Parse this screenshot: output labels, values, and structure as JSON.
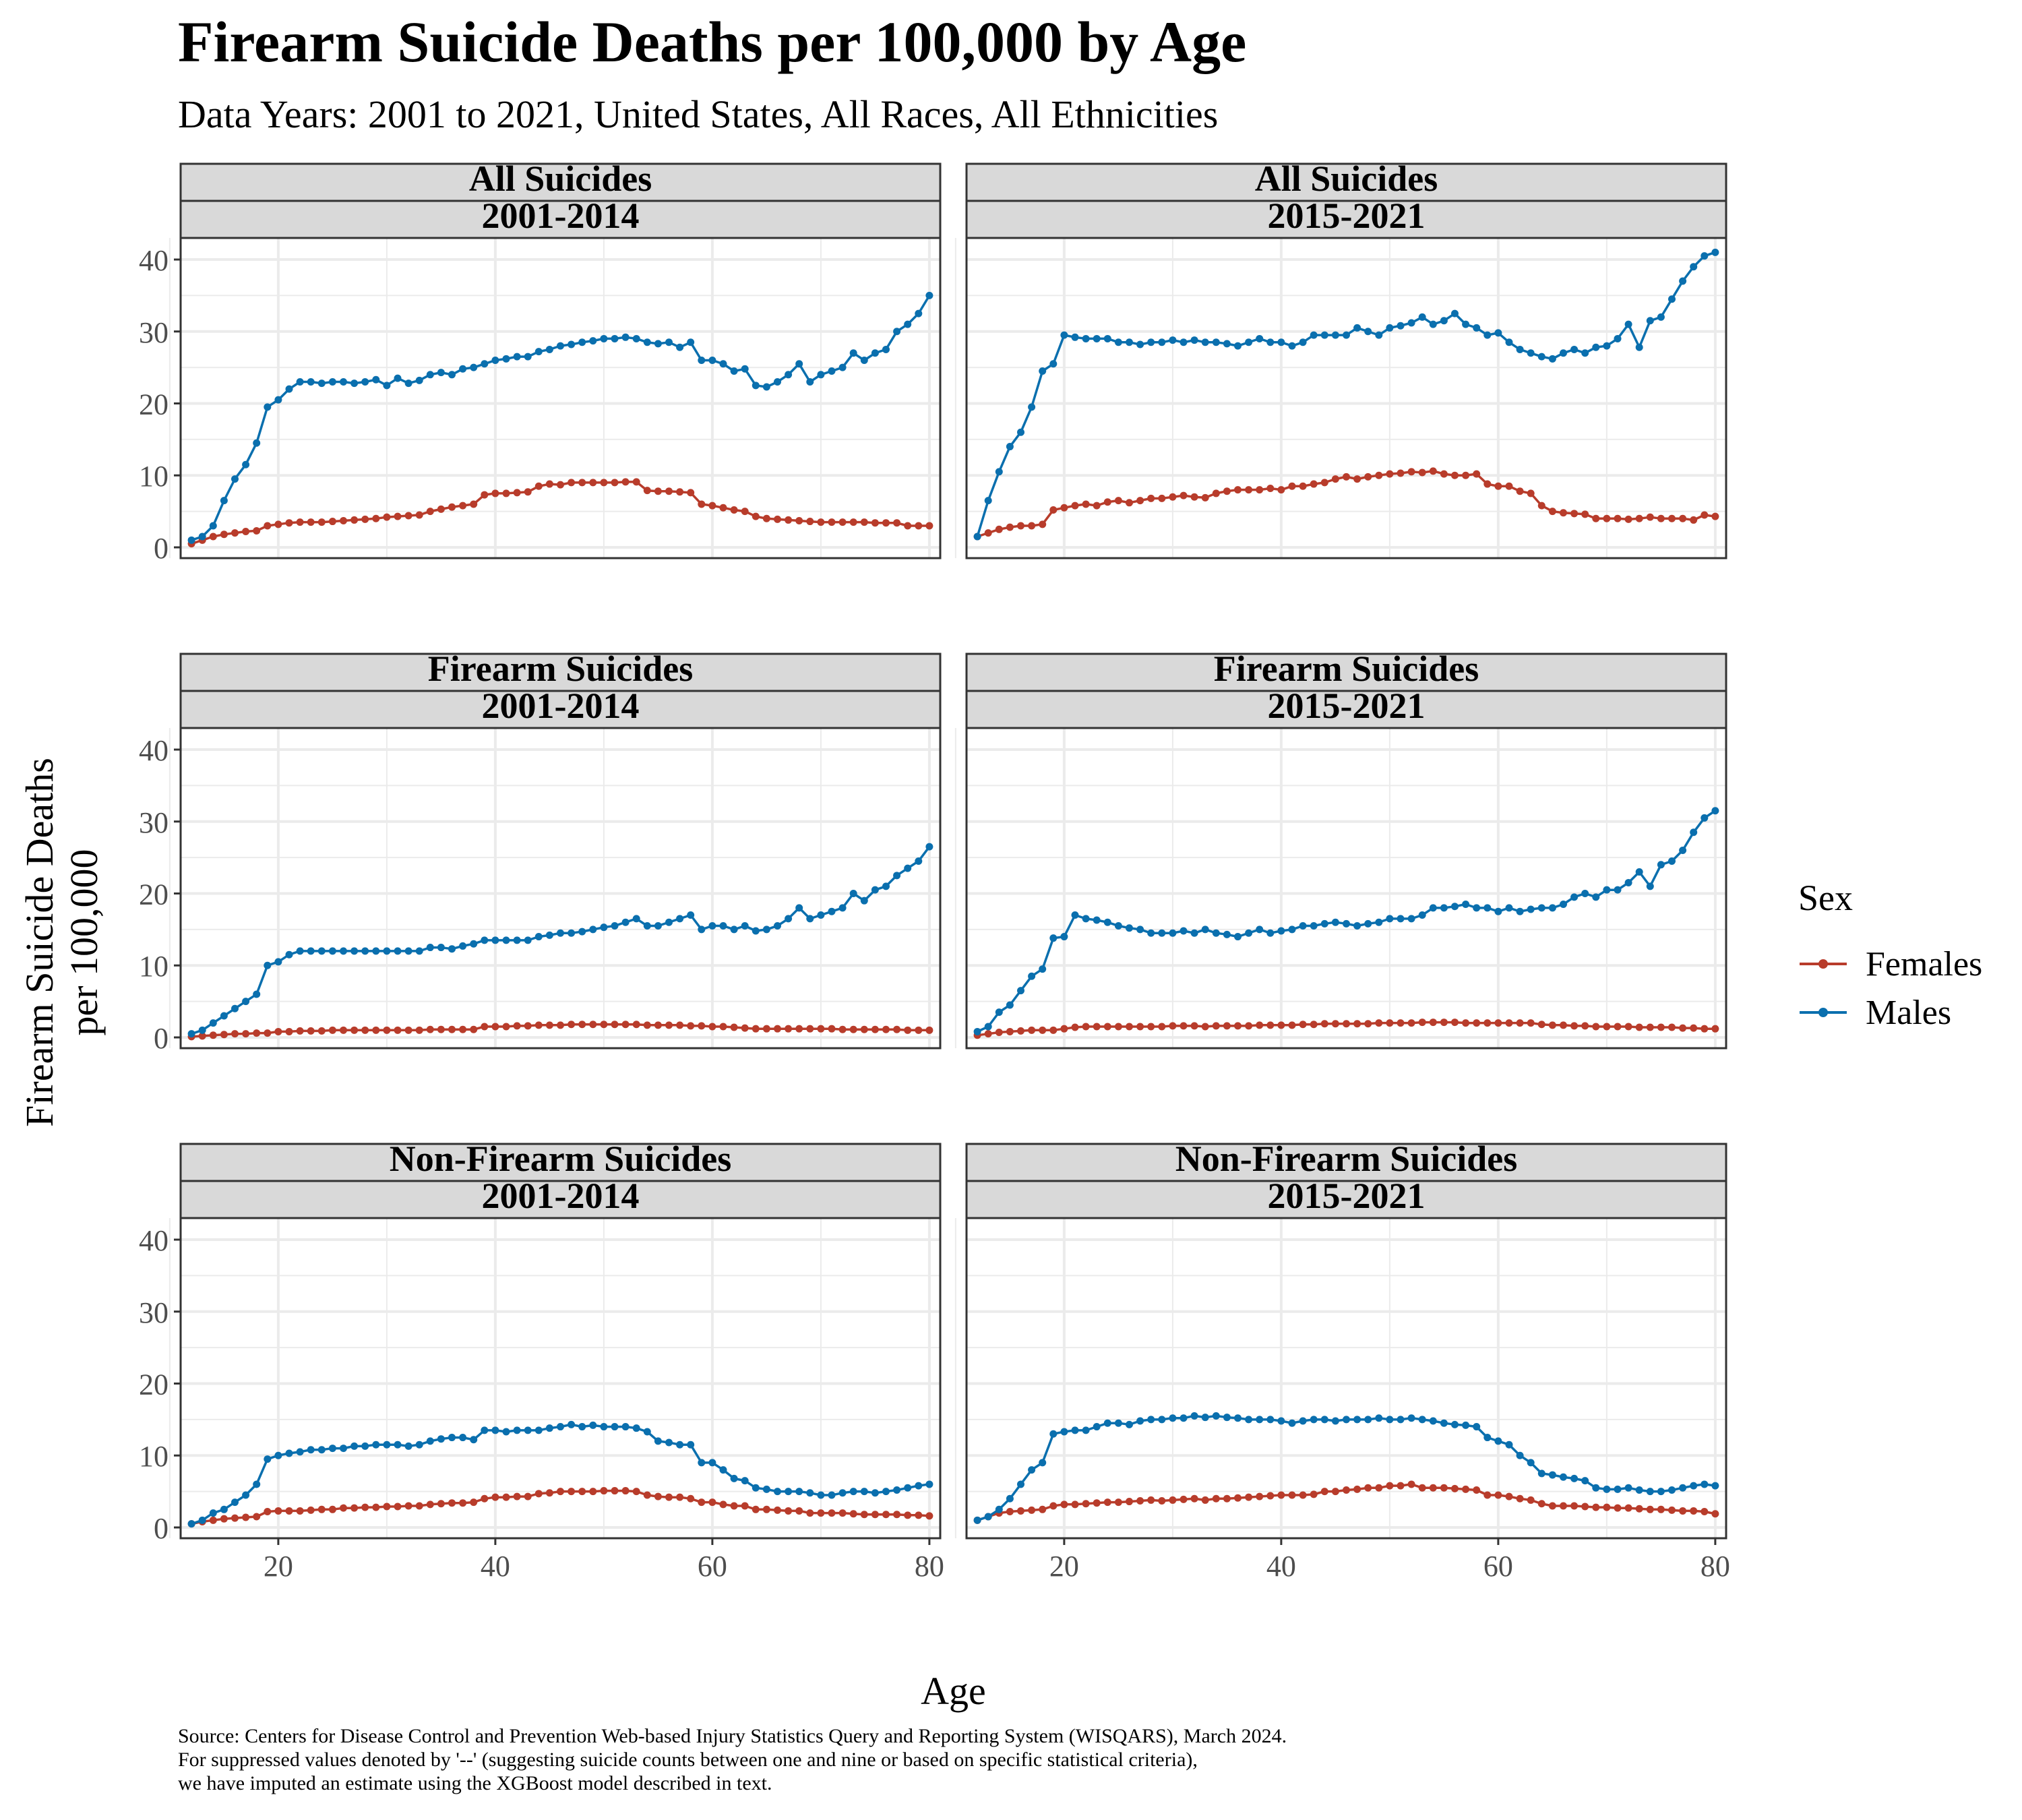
{
  "title": "Firearm Suicide Deaths per 100,000 by Age",
  "subtitle": "Data Years: 2001 to 2021, United States, All Races, All Ethnicities",
  "caption": [
    "Source: Centers for Disease Control and Prevention Web-based Injury Statistics Query and Reporting System (WISQARS), March 2024.",
    "For suppressed values denoted by '--' (suggesting suicide counts between one and nine or based on specific statistical criteria),",
    "we have imputed an estimate using the XGBoost model described in text."
  ],
  "colors": {
    "Females": "#b83c2b",
    "Males": "#0a6fae",
    "strip_fill": "#d9d9d9",
    "grid": "#ebebeb",
    "panel_border": "#333333"
  },
  "chart_data": {
    "type": "line",
    "title": "Firearm Suicide Deaths per 100,000 by Age",
    "xlabel": "Age",
    "ylabel": "Firearm Suicide Deaths\nper 100,000",
    "xlim": [
      11,
      81
    ],
    "ylim": [
      -1.5,
      43
    ],
    "x_ticks": [
      20,
      40,
      60,
      80
    ],
    "y_ticks": [
      0,
      10,
      20,
      30,
      40
    ],
    "grid": true,
    "legend": {
      "title": "Sex",
      "position": "right",
      "entries": [
        "Females",
        "Males"
      ]
    },
    "x": [
      12,
      13,
      14,
      15,
      16,
      17,
      18,
      19,
      20,
      21,
      22,
      23,
      24,
      25,
      26,
      27,
      28,
      29,
      30,
      31,
      32,
      33,
      34,
      35,
      36,
      37,
      38,
      39,
      40,
      41,
      42,
      43,
      44,
      45,
      46,
      47,
      48,
      49,
      50,
      51,
      52,
      53,
      54,
      55,
      56,
      57,
      58,
      59,
      60,
      61,
      62,
      63,
      64,
      65,
      66,
      67,
      68,
      69,
      70,
      71,
      72,
      73,
      74,
      75,
      76,
      77,
      78,
      79,
      80
    ],
    "panels": [
      {
        "strip_top": "All Suicides",
        "strip_bottom": "2001-2014",
        "series": [
          {
            "name": "Females",
            "values": [
              0.5,
              1.0,
              1.5,
              1.8,
              2.0,
              2.2,
              2.3,
              3.0,
              3.2,
              3.4,
              3.5,
              3.5,
              3.5,
              3.6,
              3.7,
              3.8,
              3.9,
              4.0,
              4.2,
              4.3,
              4.4,
              4.5,
              5.0,
              5.3,
              5.6,
              5.8,
              6.0,
              7.3,
              7.5,
              7.5,
              7.6,
              7.7,
              8.5,
              8.8,
              8.7,
              9.0,
              9.0,
              9.0,
              9.0,
              9.0,
              9.1,
              9.1,
              7.9,
              7.8,
              7.8,
              7.7,
              7.6,
              6.0,
              5.8,
              5.5,
              5.2,
              5.0,
              4.3,
              4.0,
              3.9,
              3.8,
              3.7,
              3.6,
              3.5,
              3.5,
              3.5,
              3.5,
              3.5,
              3.4,
              3.4,
              3.4,
              3.0,
              3.0,
              3.0
            ]
          },
          {
            "name": "Males",
            "values": [
              1.0,
              1.5,
              3.0,
              6.5,
              9.5,
              11.5,
              14.5,
              19.5,
              20.5,
              22.0,
              23.0,
              23.0,
              22.8,
              23.0,
              23.0,
              22.8,
              23.0,
              23.3,
              22.5,
              23.5,
              22.8,
              23.2,
              24.0,
              24.3,
              24.0,
              24.8,
              25.0,
              25.5,
              26.0,
              26.2,
              26.5,
              26.5,
              27.2,
              27.5,
              28.0,
              28.2,
              28.5,
              28.7,
              29.0,
              29.0,
              29.2,
              29.0,
              28.5,
              28.3,
              28.5,
              27.8,
              28.5,
              26.0,
              26.0,
              25.5,
              24.5,
              24.8,
              22.5,
              22.3,
              23.0,
              24.0,
              25.5,
              23.0,
              24.0,
              24.5,
              25.0,
              27.0,
              26.0,
              27.0,
              27.5,
              30.0,
              31.0,
              32.5,
              35.0
            ]
          }
        ]
      },
      {
        "strip_top": "All Suicides",
        "strip_bottom": "2015-2021",
        "series": [
          {
            "name": "Females",
            "values": [
              1.5,
              2.0,
              2.5,
              2.8,
              3.0,
              3.0,
              3.2,
              5.2,
              5.5,
              5.8,
              6.0,
              5.8,
              6.3,
              6.5,
              6.2,
              6.5,
              6.8,
              6.8,
              7.0,
              7.2,
              7.0,
              6.9,
              7.5,
              7.8,
              8.0,
              8.0,
              8.0,
              8.2,
              8.0,
              8.5,
              8.5,
              8.8,
              9.0,
              9.5,
              9.8,
              9.5,
              9.8,
              10.0,
              10.2,
              10.3,
              10.5,
              10.4,
              10.6,
              10.2,
              10.0,
              10.0,
              10.2,
              8.8,
              8.5,
              8.5,
              7.8,
              7.5,
              5.8,
              5.0,
              4.8,
              4.7,
              4.6,
              4.0,
              4.0,
              4.0,
              3.9,
              4.0,
              4.2,
              4.0,
              4.0,
              4.0,
              3.8,
              4.5,
              4.3
            ]
          },
          {
            "name": "Males",
            "values": [
              1.5,
              6.5,
              10.5,
              14.0,
              16.0,
              19.5,
              24.5,
              25.5,
              29.5,
              29.2,
              29.0,
              29.0,
              29.0,
              28.5,
              28.5,
              28.2,
              28.5,
              28.5,
              28.8,
              28.5,
              28.8,
              28.5,
              28.5,
              28.3,
              28.0,
              28.5,
              29.0,
              28.5,
              28.5,
              28.0,
              28.5,
              29.5,
              29.5,
              29.5,
              29.5,
              30.5,
              30.0,
              29.5,
              30.5,
              30.8,
              31.2,
              32.0,
              31.0,
              31.5,
              32.5,
              31.0,
              30.5,
              29.5,
              29.8,
              28.5,
              27.5,
              27.0,
              26.5,
              26.2,
              27.0,
              27.5,
              27.0,
              27.8,
              28.0,
              29.0,
              31.0,
              27.8,
              31.5,
              32.0,
              34.5,
              37.0,
              39.0,
              40.5,
              41.0
            ]
          }
        ]
      },
      {
        "strip_top": "Firearm Suicides",
        "strip_bottom": "2001-2014",
        "series": [
          {
            "name": "Females",
            "values": [
              0.1,
              0.2,
              0.3,
              0.4,
              0.5,
              0.5,
              0.6,
              0.6,
              0.8,
              0.8,
              0.9,
              0.9,
              0.9,
              1.0,
              1.0,
              1.0,
              1.0,
              1.0,
              1.0,
              1.0,
              1.0,
              1.0,
              1.1,
              1.1,
              1.1,
              1.1,
              1.1,
              1.5,
              1.5,
              1.5,
              1.6,
              1.6,
              1.7,
              1.7,
              1.7,
              1.8,
              1.8,
              1.8,
              1.8,
              1.8,
              1.8,
              1.8,
              1.7,
              1.7,
              1.7,
              1.7,
              1.6,
              1.6,
              1.5,
              1.5,
              1.4,
              1.3,
              1.2,
              1.2,
              1.2,
              1.2,
              1.2,
              1.2,
              1.2,
              1.2,
              1.1,
              1.1,
              1.1,
              1.1,
              1.1,
              1.1,
              1.0,
              1.0,
              1.0
            ]
          },
          {
            "name": "Males",
            "values": [
              0.5,
              1.0,
              2.0,
              3.0,
              4.0,
              5.0,
              6.0,
              10.0,
              10.5,
              11.5,
              12.0,
              12.0,
              12.0,
              12.0,
              12.0,
              12.0,
              12.0,
              12.0,
              12.0,
              12.0,
              12.0,
              12.0,
              12.5,
              12.5,
              12.3,
              12.7,
              13.0,
              13.5,
              13.5,
              13.5,
              13.5,
              13.5,
              14.0,
              14.2,
              14.5,
              14.5,
              14.7,
              15.0,
              15.3,
              15.5,
              16.0,
              16.5,
              15.5,
              15.5,
              16.0,
              16.5,
              17.0,
              15.0,
              15.5,
              15.5,
              15.0,
              15.5,
              14.8,
              15.0,
              15.5,
              16.5,
              18.0,
              16.5,
              17.0,
              17.5,
              18.0,
              20.0,
              19.0,
              20.5,
              21.0,
              22.5,
              23.5,
              24.5,
              26.5
            ]
          }
        ]
      },
      {
        "strip_top": "Firearm Suicides",
        "strip_bottom": "2015-2021",
        "series": [
          {
            "name": "Females",
            "values": [
              0.3,
              0.5,
              0.7,
              0.8,
              0.9,
              1.0,
              1.0,
              1.0,
              1.2,
              1.4,
              1.5,
              1.5,
              1.5,
              1.5,
              1.5,
              1.5,
              1.5,
              1.5,
              1.6,
              1.6,
              1.6,
              1.5,
              1.6,
              1.6,
              1.6,
              1.6,
              1.7,
              1.7,
              1.7,
              1.7,
              1.8,
              1.8,
              1.9,
              1.9,
              1.9,
              1.9,
              1.9,
              2.0,
              2.0,
              2.0,
              2.0,
              2.1,
              2.1,
              2.1,
              2.1,
              2.0,
              2.0,
              2.0,
              2.0,
              2.0,
              2.0,
              2.0,
              1.8,
              1.7,
              1.7,
              1.6,
              1.6,
              1.5,
              1.5,
              1.5,
              1.5,
              1.4,
              1.4,
              1.4,
              1.4,
              1.3,
              1.3,
              1.2,
              1.2
            ]
          },
          {
            "name": "Males",
            "values": [
              0.8,
              1.5,
              3.5,
              4.5,
              6.5,
              8.5,
              9.5,
              13.8,
              14.0,
              17.0,
              16.5,
              16.3,
              16.0,
              15.5,
              15.2,
              15.0,
              14.5,
              14.5,
              14.5,
              14.8,
              14.5,
              15.0,
              14.5,
              14.3,
              14.0,
              14.5,
              15.0,
              14.5,
              14.8,
              15.0,
              15.5,
              15.5,
              15.8,
              16.0,
              15.8,
              15.5,
              15.8,
              16.0,
              16.5,
              16.5,
              16.5,
              17.0,
              18.0,
              18.0,
              18.2,
              18.5,
              18.0,
              18.0,
              17.5,
              18.0,
              17.5,
              17.8,
              18.0,
              18.0,
              18.5,
              19.5,
              20.0,
              19.5,
              20.5,
              20.5,
              21.5,
              23.0,
              21.0,
              24.0,
              24.5,
              26.0,
              28.5,
              30.5,
              31.5
            ]
          }
        ]
      },
      {
        "strip_top": "Non-Firearm Suicides",
        "strip_bottom": "2001-2014",
        "series": [
          {
            "name": "Females",
            "values": [
              0.5,
              0.8,
              1.0,
              1.2,
              1.3,
              1.4,
              1.5,
              2.2,
              2.3,
              2.3,
              2.3,
              2.4,
              2.5,
              2.5,
              2.7,
              2.7,
              2.8,
              2.8,
              2.9,
              2.9,
              3.0,
              3.0,
              3.2,
              3.3,
              3.4,
              3.4,
              3.5,
              4.0,
              4.2,
              4.2,
              4.3,
              4.3,
              4.7,
              4.8,
              5.0,
              5.0,
              5.0,
              5.0,
              5.1,
              5.1,
              5.1,
              5.0,
              4.5,
              4.3,
              4.2,
              4.2,
              4.0,
              3.5,
              3.5,
              3.2,
              3.0,
              3.0,
              2.5,
              2.5,
              2.4,
              2.3,
              2.3,
              2.0,
              2.0,
              2.0,
              2.0,
              1.9,
              1.8,
              1.8,
              1.8,
              1.8,
              1.7,
              1.7,
              1.6
            ]
          },
          {
            "name": "Males",
            "values": [
              0.5,
              1.0,
              2.0,
              2.5,
              3.5,
              4.5,
              6.0,
              9.5,
              10.0,
              10.3,
              10.5,
              10.8,
              10.8,
              11.0,
              11.0,
              11.3,
              11.3,
              11.5,
              11.5,
              11.5,
              11.3,
              11.5,
              12.0,
              12.3,
              12.5,
              12.5,
              12.2,
              13.5,
              13.5,
              13.3,
              13.5,
              13.5,
              13.5,
              13.8,
              14.0,
              14.3,
              14.0,
              14.2,
              14.0,
              14.0,
              14.0,
              13.8,
              13.3,
              12.0,
              11.8,
              11.5,
              11.5,
              9.0,
              9.0,
              8.0,
              6.8,
              6.5,
              5.5,
              5.3,
              5.0,
              5.0,
              5.0,
              4.8,
              4.5,
              4.5,
              4.8,
              5.0,
              5.0,
              4.8,
              5.0,
              5.2,
              5.5,
              5.8,
              6.0
            ]
          }
        ]
      },
      {
        "strip_top": "Non-Firearm Suicides",
        "strip_bottom": "2015-2021",
        "series": [
          {
            "name": "Females",
            "values": [
              1.0,
              1.5,
              2.0,
              2.2,
              2.3,
              2.4,
              2.5,
              3.0,
              3.2,
              3.2,
              3.3,
              3.4,
              3.5,
              3.5,
              3.6,
              3.7,
              3.8,
              3.7,
              3.8,
              3.9,
              4.0,
              3.8,
              4.0,
              4.0,
              4.1,
              4.2,
              4.3,
              4.4,
              4.5,
              4.5,
              4.5,
              4.6,
              5.0,
              5.0,
              5.2,
              5.3,
              5.5,
              5.5,
              5.8,
              5.8,
              6.0,
              5.5,
              5.5,
              5.5,
              5.4,
              5.3,
              5.2,
              4.5,
              4.5,
              4.3,
              4.0,
              3.8,
              3.3,
              3.0,
              3.0,
              3.0,
              2.9,
              2.8,
              2.8,
              2.7,
              2.7,
              2.6,
              2.5,
              2.5,
              2.4,
              2.3,
              2.3,
              2.2,
              1.9
            ]
          },
          {
            "name": "Males",
            "values": [
              1.0,
              1.5,
              2.5,
              4.0,
              6.0,
              8.0,
              9.0,
              13.0,
              13.3,
              13.5,
              13.5,
              14.0,
              14.5,
              14.5,
              14.3,
              14.8,
              15.0,
              15.0,
              15.2,
              15.2,
              15.5,
              15.3,
              15.5,
              15.3,
              15.2,
              15.0,
              15.0,
              15.0,
              14.8,
              14.5,
              14.8,
              15.0,
              15.0,
              14.8,
              15.0,
              15.0,
              15.0,
              15.2,
              15.0,
              15.0,
              15.2,
              15.0,
              14.8,
              14.5,
              14.3,
              14.2,
              14.0,
              12.5,
              12.0,
              11.5,
              10.0,
              9.0,
              7.5,
              7.3,
              7.0,
              6.8,
              6.5,
              5.5,
              5.3,
              5.3,
              5.5,
              5.2,
              5.0,
              5.0,
              5.2,
              5.5,
              5.8,
              6.0,
              5.8
            ]
          }
        ]
      }
    ]
  }
}
